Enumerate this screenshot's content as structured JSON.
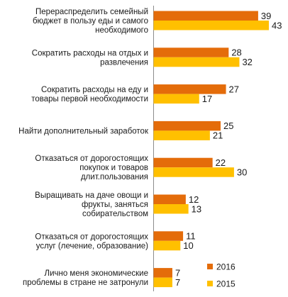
{
  "chart_data": {
    "type": "bar",
    "orientation": "horizontal",
    "categories": [
      "Перераспределить семейный бюджет в пользу еды и самого необходимого",
      "Сократить расходы на отдых и развлечения",
      "Сократить расходы на еду и товары первой необходимости",
      "Найти дополнительный заработок",
      "Отказаться от дорогостоящих покупок и товаров длит.пользования",
      "Выращивать на даче овощи и фрукты, заняться собирательством",
      "Отказаться от дорогостоящих услуг (лечение, образование)",
      "Лично меня экономические проблемы в стране не затронули"
    ],
    "category_lines": [
      [
        "Перераспределить семейный",
        "бюджет в пользу еды и самого",
        "необходимого"
      ],
      [
        "Сократить расходы на отдых и",
        "развлечения"
      ],
      [
        "Сократить расходы на еду и",
        "товары первой необходимости"
      ],
      [
        "Найти дополнительный заработок"
      ],
      [
        "Отказаться от дорогостоящих",
        "покупок и товаров",
        "длит.пользования"
      ],
      [
        "Выращивать на даче овощи и",
        "фрукты, заняться",
        "собирательством"
      ],
      [
        "Отказаться от дорогостоящих",
        "услуг (лечение, образование)"
      ],
      [
        "Лично меня экономические",
        "проблемы в стране не затронули"
      ]
    ],
    "series": [
      {
        "name": "2016",
        "color": "#E46C0A",
        "values": [
          39,
          28,
          27,
          25,
          22,
          12,
          11,
          7
        ]
      },
      {
        "name": "2015",
        "color": "#FFC000",
        "values": [
          43,
          32,
          17,
          21,
          30,
          13,
          10,
          7
        ]
      }
    ],
    "xlim": [
      0,
      43
    ],
    "grid": false,
    "legend_position": "bottom-right",
    "title": "",
    "xlabel": "",
    "ylabel": ""
  }
}
